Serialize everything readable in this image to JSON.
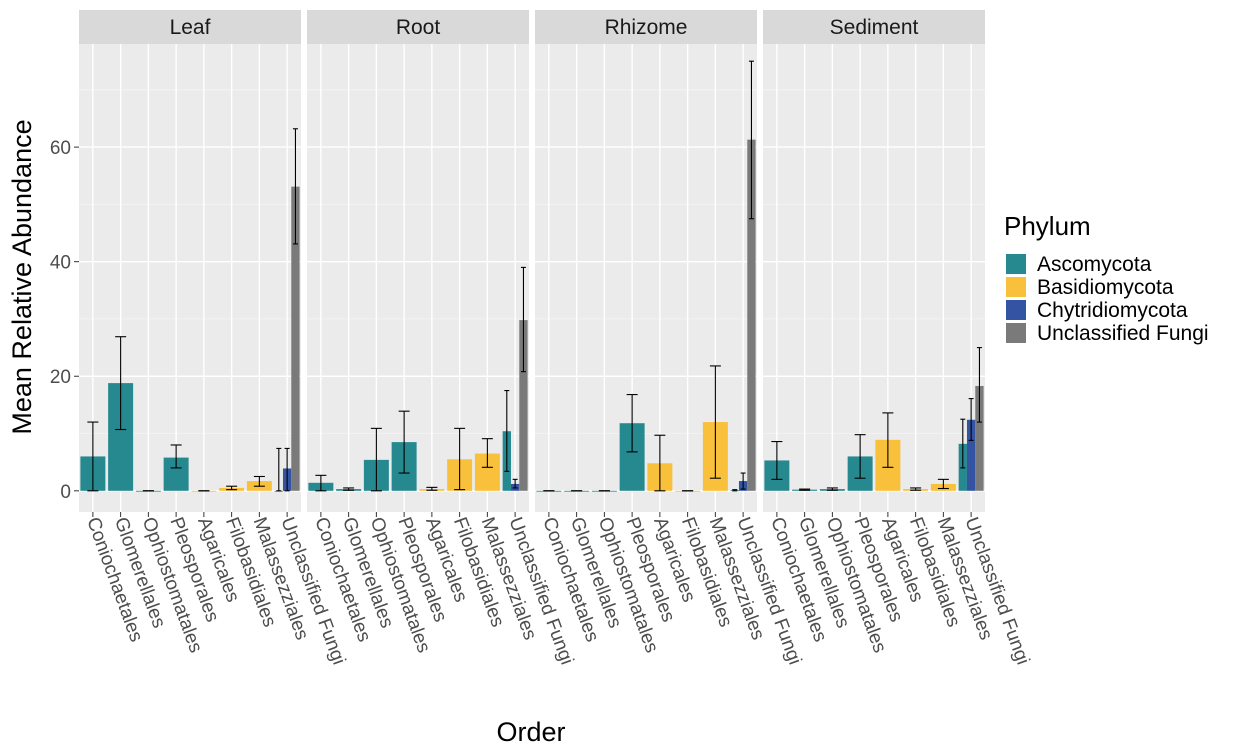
{
  "chart_data": {
    "type": "bar",
    "xlabel": "Order",
    "ylabel": "Mean Relative Abundance",
    "ylim": [
      -3.7,
      78
    ],
    "yticks": [
      0,
      20,
      40,
      60
    ],
    "legend": {
      "title": "Phylum",
      "placement": "right",
      "entries": [
        {
          "label": "Ascomycota",
          "color": "#26898F"
        },
        {
          "label": "Basidiomycota",
          "color": "#F9C03B"
        },
        {
          "label": "Chytridiomycota",
          "color": "#3453A3"
        },
        {
          "label": "Unclassified Fungi",
          "color": "#7A7A7A"
        }
      ]
    },
    "categories": [
      "Coniochaetales",
      "Glomerellales",
      "Ophiostomatales",
      "Pleosporales",
      "Agaricales",
      "Filobasidiales",
      "Malassezziales",
      "Unclassified Fungi"
    ],
    "category_phylum": [
      "Ascomycota",
      "Ascomycota",
      "Ascomycota",
      "Ascomycota",
      "Basidiomycota",
      "Basidiomycota",
      "Basidiomycota",
      "Unclassified Fungi"
    ],
    "panels": [
      {
        "name": "Leaf",
        "bars": [
          {
            "category": "Coniochaetales",
            "phylum": "Ascomycota",
            "value": 6,
            "lo": 0,
            "hi": 12
          },
          {
            "category": "Glomerellales",
            "phylum": "Ascomycota",
            "value": 18.8,
            "lo": 10.7,
            "hi": 26.9
          },
          {
            "category": "Ophiostomatales",
            "phylum": "Ascomycota",
            "value": 0,
            "lo": 0,
            "hi": 0
          },
          {
            "category": "Pleosporales",
            "phylum": "Ascomycota",
            "value": 5.8,
            "lo": 4,
            "hi": 8
          },
          {
            "category": "Agaricales",
            "phylum": "Basidiomycota",
            "value": 0,
            "lo": 0,
            "hi": 0
          },
          {
            "category": "Filobasidiales",
            "phylum": "Basidiomycota",
            "value": 0.5,
            "lo": 0.2,
            "hi": 0.8
          },
          {
            "category": "Malassezziales",
            "phylum": "Basidiomycota",
            "value": 1.7,
            "lo": 0.8,
            "hi": 2.5
          },
          {
            "category": "Unclassified Fungi",
            "phylum": "Ascomycota",
            "value": 0,
            "lo": 0,
            "hi": 7.4
          },
          {
            "category": "Unclassified Fungi",
            "phylum": "Chytridiomycota",
            "value": 3.9,
            "lo": 0,
            "hi": 7.4
          },
          {
            "category": "Unclassified Fungi",
            "phylum": "Unclassified Fungi",
            "value": 53.1,
            "lo": 43.1,
            "hi": 63.2
          }
        ]
      },
      {
        "name": "Root",
        "bars": [
          {
            "category": "Coniochaetales",
            "phylum": "Ascomycota",
            "value": 1.4,
            "lo": 0,
            "hi": 2.7
          },
          {
            "category": "Glomerellales",
            "phylum": "Ascomycota",
            "value": 0.3,
            "lo": 0.1,
            "hi": 0.5
          },
          {
            "category": "Ophiostomatales",
            "phylum": "Ascomycota",
            "value": 5.4,
            "lo": 0,
            "hi": 10.9
          },
          {
            "category": "Pleosporales",
            "phylum": "Ascomycota",
            "value": 8.5,
            "lo": 3.1,
            "hi": 13.9
          },
          {
            "category": "Agaricales",
            "phylum": "Basidiomycota",
            "value": 0.3,
            "lo": 0.1,
            "hi": 0.6
          },
          {
            "category": "Filobasidiales",
            "phylum": "Basidiomycota",
            "value": 5.5,
            "lo": 0.2,
            "hi": 10.9
          },
          {
            "category": "Malassezziales",
            "phylum": "Basidiomycota",
            "value": 6.5,
            "lo": 4.1,
            "hi": 9.1
          },
          {
            "category": "Unclassified Fungi",
            "phylum": "Ascomycota",
            "value": 10.4,
            "lo": 3.4,
            "hi": 17.5
          },
          {
            "category": "Unclassified Fungi",
            "phylum": "Chytridiomycota",
            "value": 1.2,
            "lo": 0.5,
            "hi": 2
          },
          {
            "category": "Unclassified Fungi",
            "phylum": "Unclassified Fungi",
            "value": 29.8,
            "lo": 20.8,
            "hi": 39
          }
        ]
      },
      {
        "name": "Rhizome",
        "bars": [
          {
            "category": "Coniochaetales",
            "phylum": "Ascomycota",
            "value": 0,
            "lo": 0,
            "hi": 0
          },
          {
            "category": "Glomerellales",
            "phylum": "Ascomycota",
            "value": 0,
            "lo": 0,
            "hi": 0
          },
          {
            "category": "Ophiostomatales",
            "phylum": "Ascomycota",
            "value": 0,
            "lo": 0,
            "hi": 0
          },
          {
            "category": "Pleosporales",
            "phylum": "Ascomycota",
            "value": 11.8,
            "lo": 6.8,
            "hi": 16.8
          },
          {
            "category": "Agaricales",
            "phylum": "Basidiomycota",
            "value": 4.8,
            "lo": 0,
            "hi": 9.7
          },
          {
            "category": "Filobasidiales",
            "phylum": "Basidiomycota",
            "value": 0,
            "lo": 0,
            "hi": 0
          },
          {
            "category": "Malassezziales",
            "phylum": "Basidiomycota",
            "value": 12,
            "lo": 2.2,
            "hi": 21.8
          },
          {
            "category": "Unclassified Fungi",
            "phylum": "Ascomycota",
            "value": 0.1,
            "lo": 0,
            "hi": 0.2
          },
          {
            "category": "Unclassified Fungi",
            "phylum": "Chytridiomycota",
            "value": 1.7,
            "lo": 0.3,
            "hi": 3.1
          },
          {
            "category": "Unclassified Fungi",
            "phylum": "Unclassified Fungi",
            "value": 61.3,
            "lo": 47.5,
            "hi": 75
          }
        ]
      },
      {
        "name": "Sediment",
        "bars": [
          {
            "category": "Coniochaetales",
            "phylum": "Ascomycota",
            "value": 5.3,
            "lo": 2,
            "hi": 8.6
          },
          {
            "category": "Glomerellales",
            "phylum": "Ascomycota",
            "value": 0.2,
            "lo": 0.1,
            "hi": 0.3
          },
          {
            "category": "Ophiostomatales",
            "phylum": "Ascomycota",
            "value": 0.3,
            "lo": 0.1,
            "hi": 0.5
          },
          {
            "category": "Pleosporales",
            "phylum": "Ascomycota",
            "value": 6,
            "lo": 2.2,
            "hi": 9.8
          },
          {
            "category": "Agaricales",
            "phylum": "Basidiomycota",
            "value": 8.9,
            "lo": 4.1,
            "hi": 13.6
          },
          {
            "category": "Filobasidiales",
            "phylum": "Basidiomycota",
            "value": 0.3,
            "lo": 0.1,
            "hi": 0.5
          },
          {
            "category": "Malassezziales",
            "phylum": "Basidiomycota",
            "value": 1.2,
            "lo": 0.4,
            "hi": 2
          },
          {
            "category": "Unclassified Fungi",
            "phylum": "Ascomycota",
            "value": 8.2,
            "lo": 4,
            "hi": 12.5
          },
          {
            "category": "Unclassified Fungi",
            "phylum": "Chytridiomycota",
            "value": 12.4,
            "lo": 8.8,
            "hi": 16.1
          },
          {
            "category": "Unclassified Fungi",
            "phylum": "Unclassified Fungi",
            "value": 18.3,
            "lo": 12,
            "hi": 25
          }
        ]
      }
    ]
  }
}
